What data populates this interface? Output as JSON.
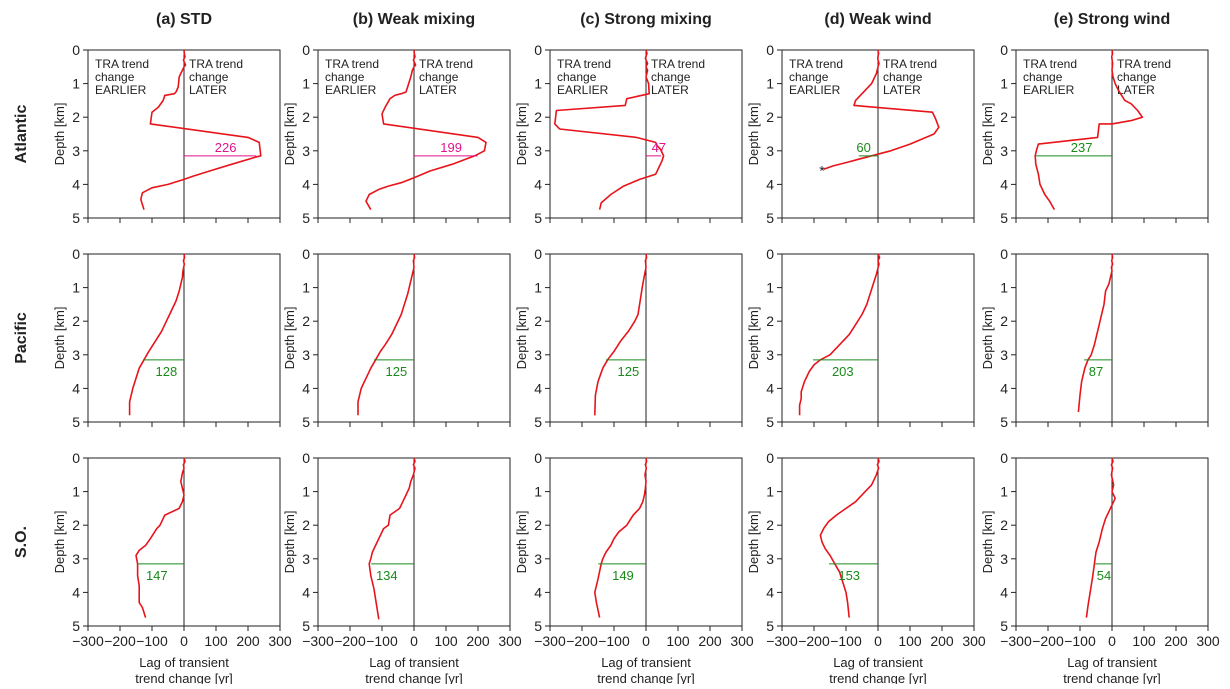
{
  "chart_data": {
    "type": "line",
    "columns": [
      "(a) STD",
      "(b) Weak mixing",
      "(c) Strong mixing",
      "(d) Weak wind",
      "(e) Strong wind"
    ],
    "rows": [
      "Atlantic",
      "Pacific",
      "S.O."
    ],
    "xlim": [
      -300,
      300
    ],
    "xticks": [
      -300,
      -200,
      -100,
      0,
      100,
      200,
      300
    ],
    "ylim": [
      0,
      5
    ],
    "yticks": [
      0,
      1,
      2,
      3,
      4,
      5
    ],
    "ylabel": "Depth [km]",
    "xlabel_line1": "Lag of transient",
    "xlabel_line2": "trend change [yr]",
    "annotation_left": [
      "TRA trend",
      "change",
      "EARLIER"
    ],
    "annotation_right": [
      "TRA trend",
      "change",
      "LATER"
    ],
    "marker_depth": 3.15,
    "asterisk": "*",
    "colors": {
      "profile": "#e8141b",
      "pink": "#e0138c",
      "green": "#1a8a1a",
      "axis": "#222222"
    },
    "panels": [
      {
        "row": 0,
        "col": 0,
        "color": "pink",
        "label": "226",
        "label_x": 130,
        "marker_value": 226,
        "x": [
          0,
          1,
          3,
          -2,
          5,
          0,
          -5,
          -15,
          -18,
          -25,
          -30,
          -60,
          -65,
          -80,
          -100,
          -105,
          200,
          235,
          240,
          220,
          150,
          80,
          30,
          0,
          -50,
          -100,
          -130,
          -135,
          -125
        ],
        "y": [
          0,
          0.1,
          0.2,
          0.3,
          0.45,
          0.5,
          0.6,
          0.8,
          1.1,
          1.25,
          1.3,
          1.35,
          1.5,
          1.7,
          1.85,
          2.2,
          2.6,
          2.75,
          3.15,
          3.2,
          3.4,
          3.6,
          3.75,
          3.85,
          4.0,
          4.1,
          4.25,
          4.45,
          4.75
        ]
      },
      {
        "row": 0,
        "col": 1,
        "color": "pink",
        "label": "199",
        "label_x": 116,
        "marker_value": 199,
        "x": [
          0,
          1,
          3,
          -2,
          5,
          0,
          -5,
          -10,
          -20,
          -25,
          -40,
          -60,
          -75,
          -90,
          -100,
          -95,
          200,
          225,
          220,
          190,
          120,
          50,
          0,
          -40,
          -80,
          -110,
          -140,
          -150,
          -135
        ],
        "y": [
          0,
          0.1,
          0.2,
          0.3,
          0.45,
          0.5,
          0.6,
          0.8,
          1.1,
          1.25,
          1.3,
          1.35,
          1.45,
          1.7,
          1.9,
          2.2,
          2.6,
          2.75,
          3.0,
          3.15,
          3.4,
          3.6,
          3.8,
          3.95,
          4.05,
          4.15,
          4.3,
          4.5,
          4.75
        ]
      },
      {
        "row": 0,
        "col": 2,
        "color": "pink",
        "label": "47",
        "label_x": 40,
        "marker_value": 47,
        "x": [
          0,
          3,
          -2,
          5,
          0,
          5,
          0,
          8,
          10,
          -60,
          -65,
          -280,
          -285,
          -270,
          -30,
          30,
          35,
          45,
          50,
          55,
          50,
          40,
          30,
          -20,
          -70,
          -110,
          -140,
          -145
        ],
        "y": [
          0,
          0.1,
          0.25,
          0.4,
          0.5,
          0.6,
          0.8,
          1.0,
          1.3,
          1.45,
          1.65,
          1.8,
          2.2,
          2.35,
          2.6,
          2.75,
          2.85,
          2.95,
          3.05,
          3.15,
          3.3,
          3.5,
          3.7,
          3.85,
          4.05,
          4.3,
          4.55,
          4.75
        ]
      },
      {
        "row": 0,
        "col": 3,
        "color": "green",
        "label": "60",
        "label_x": -45,
        "marker_value": 60,
        "asterisk": true,
        "x": [
          0,
          2,
          -1,
          3,
          0,
          -5,
          -20,
          -40,
          -70,
          -75,
          170,
          180,
          190,
          175,
          100,
          40,
          -20,
          -60,
          -100,
          -140,
          -170
        ],
        "y": [
          0,
          0.1,
          0.25,
          0.4,
          0.5,
          0.7,
          1.0,
          1.2,
          1.5,
          1.65,
          1.85,
          2.05,
          2.3,
          2.5,
          2.8,
          3.0,
          3.15,
          3.25,
          3.35,
          3.45,
          3.55
        ]
      },
      {
        "row": 0,
        "col": 4,
        "color": "green",
        "label": "237",
        "label_x": -95,
        "marker_value": 237,
        "x": [
          0,
          2,
          -1,
          2,
          0,
          3,
          10,
          20,
          40,
          60,
          80,
          95,
          60,
          0,
          -40,
          -45,
          -230,
          -235,
          -240,
          -238,
          -230,
          -225,
          -210,
          -195,
          -180
        ],
        "y": [
          0,
          0.1,
          0.2,
          0.4,
          0.6,
          0.8,
          1.0,
          1.2,
          1.5,
          1.6,
          1.8,
          2.0,
          2.1,
          2.2,
          2.2,
          2.6,
          2.8,
          2.95,
          3.15,
          3.4,
          3.7,
          4.0,
          4.3,
          4.5,
          4.75
        ]
      },
      {
        "row": 1,
        "col": 0,
        "color": "green",
        "label": "128",
        "label_x": -55,
        "marker_value": 128,
        "x": [
          0,
          2,
          -2,
          1,
          -3,
          -5,
          -10,
          -15,
          -25,
          -40,
          -55,
          -70,
          -90,
          -110,
          -125,
          -140,
          -150,
          -160,
          -170,
          -170
        ],
        "y": [
          0,
          0.1,
          0.2,
          0.3,
          0.5,
          0.7,
          0.9,
          1.1,
          1.4,
          1.7,
          2.0,
          2.3,
          2.6,
          2.9,
          3.15,
          3.4,
          3.7,
          4.0,
          4.4,
          4.8
        ]
      },
      {
        "row": 1,
        "col": 1,
        "color": "green",
        "label": "125",
        "label_x": -55,
        "marker_value": 125,
        "x": [
          0,
          2,
          -2,
          0,
          -5,
          -10,
          -15,
          -20,
          -30,
          -40,
          -55,
          -70,
          -90,
          -105,
          -120,
          -135,
          -150,
          -165,
          -175,
          -175
        ],
        "y": [
          0,
          0.1,
          0.2,
          0.4,
          0.6,
          0.8,
          1.0,
          1.2,
          1.5,
          1.8,
          2.1,
          2.4,
          2.7,
          2.9,
          3.15,
          3.4,
          3.7,
          4.0,
          4.4,
          4.8
        ]
      },
      {
        "row": 1,
        "col": 2,
        "color": "green",
        "label": "125",
        "label_x": -55,
        "marker_value": 125,
        "x": [
          0,
          2,
          -2,
          0,
          -4,
          -8,
          -12,
          -15,
          -20,
          -25,
          -35,
          -55,
          -80,
          -100,
          -120,
          -135,
          -150,
          -158,
          -160
        ],
        "y": [
          0,
          0.1,
          0.2,
          0.4,
          0.6,
          0.8,
          1.0,
          1.2,
          1.5,
          1.8,
          2.0,
          2.3,
          2.6,
          2.9,
          3.15,
          3.4,
          3.8,
          4.2,
          4.8
        ]
      },
      {
        "row": 1,
        "col": 3,
        "color": "green",
        "label": "203",
        "label_x": -110,
        "marker_value": 203,
        "x": [
          0,
          5,
          0,
          3,
          -5,
          -15,
          -25,
          -35,
          -50,
          -70,
          -90,
          -120,
          -150,
          -180,
          -200,
          -215,
          -230,
          -240,
          -240,
          -245,
          -245
        ],
        "y": [
          0,
          0.1,
          0.2,
          0.3,
          0.6,
          0.9,
          1.2,
          1.5,
          1.8,
          2.1,
          2.4,
          2.7,
          3.0,
          3.15,
          3.3,
          3.5,
          3.8,
          4.1,
          4.3,
          4.5,
          4.8
        ]
      },
      {
        "row": 1,
        "col": 4,
        "color": "green",
        "label": "87",
        "label_x": -50,
        "marker_value": 87,
        "x": [
          0,
          2,
          -1,
          2,
          -2,
          0,
          -5,
          -10,
          -20,
          -25,
          -35,
          -45,
          -55,
          -65,
          -75,
          -85,
          -95,
          -100,
          -105
        ],
        "y": [
          0,
          0.1,
          0.2,
          0.3,
          0.4,
          0.5,
          0.7,
          0.9,
          1.1,
          1.5,
          1.9,
          2.3,
          2.7,
          3.0,
          3.15,
          3.4,
          3.8,
          4.2,
          4.7
        ]
      },
      {
        "row": 2,
        "col": 0,
        "color": "green",
        "label": "147",
        "label_x": -85,
        "marker_value": 147,
        "x": [
          0,
          3,
          -2,
          0,
          -5,
          -10,
          -5,
          0,
          -5,
          -15,
          -60,
          -75,
          -85,
          -95,
          -105,
          -120,
          -140,
          -150,
          -145,
          -145,
          -140,
          -140,
          -140,
          -130,
          -120
        ],
        "y": [
          0,
          0.1,
          0.2,
          0.3,
          0.45,
          0.7,
          0.9,
          1.1,
          1.3,
          1.5,
          1.7,
          2.0,
          2.1,
          2.25,
          2.4,
          2.6,
          2.75,
          2.9,
          3.15,
          3.5,
          3.8,
          4.1,
          4.3,
          4.45,
          4.75
        ]
      },
      {
        "row": 2,
        "col": 1,
        "color": "green",
        "label": "134",
        "label_x": -85,
        "marker_value": 134,
        "x": [
          0,
          3,
          -2,
          3,
          -2,
          -10,
          -15,
          -25,
          -35,
          -45,
          -75,
          -80,
          -95,
          -105,
          -120,
          -130,
          -135,
          -140,
          -135,
          -125,
          -120,
          -115,
          -110
        ],
        "y": [
          0,
          0.1,
          0.2,
          0.3,
          0.5,
          0.7,
          0.9,
          1.1,
          1.3,
          1.5,
          1.7,
          2.0,
          2.1,
          2.3,
          2.6,
          2.8,
          3.0,
          3.15,
          3.5,
          3.9,
          4.2,
          4.5,
          4.8
        ]
      },
      {
        "row": 2,
        "col": 2,
        "color": "green",
        "label": "149",
        "label_x": -72,
        "marker_value": 149,
        "x": [
          0,
          2,
          -2,
          1,
          -3,
          0,
          -2,
          -5,
          -10,
          -20,
          -40,
          -60,
          -85,
          -100,
          -110,
          -125,
          -135,
          -140,
          -150,
          -160,
          -155,
          -145
        ],
        "y": [
          0,
          0.1,
          0.2,
          0.3,
          0.5,
          0.7,
          0.9,
          1.1,
          1.3,
          1.5,
          1.7,
          2.0,
          2.2,
          2.4,
          2.6,
          2.8,
          3.0,
          3.15,
          3.6,
          4.0,
          4.3,
          4.75
        ]
      },
      {
        "row": 2,
        "col": 3,
        "color": "green",
        "label": "153",
        "label_x": -90,
        "marker_value": 153,
        "x": [
          0,
          3,
          -2,
          2,
          -5,
          -20,
          -40,
          -70,
          -100,
          -130,
          -155,
          -170,
          -180,
          -175,
          -165,
          -150,
          -135,
          -120,
          -110,
          -100,
          -95,
          -90
        ],
        "y": [
          0,
          0.1,
          0.2,
          0.3,
          0.5,
          0.8,
          1.0,
          1.3,
          1.5,
          1.7,
          1.9,
          2.1,
          2.3,
          2.5,
          2.7,
          2.9,
          3.15,
          3.4,
          3.7,
          4.0,
          4.3,
          4.75
        ]
      },
      {
        "row": 2,
        "col": 4,
        "color": "green",
        "label": "54",
        "label_x": -25,
        "marker_value": 54,
        "x": [
          0,
          3,
          -2,
          2,
          -2,
          5,
          0,
          10,
          0,
          -10,
          -20,
          -30,
          -40,
          -50,
          -55,
          -60,
          -65,
          -70,
          -75,
          -80
        ],
        "y": [
          0,
          0.1,
          0.2,
          0.3,
          0.5,
          0.8,
          1.0,
          1.2,
          1.4,
          1.6,
          1.8,
          2.1,
          2.5,
          2.8,
          3.15,
          3.5,
          3.8,
          4.1,
          4.4,
          4.75
        ]
      }
    ]
  }
}
